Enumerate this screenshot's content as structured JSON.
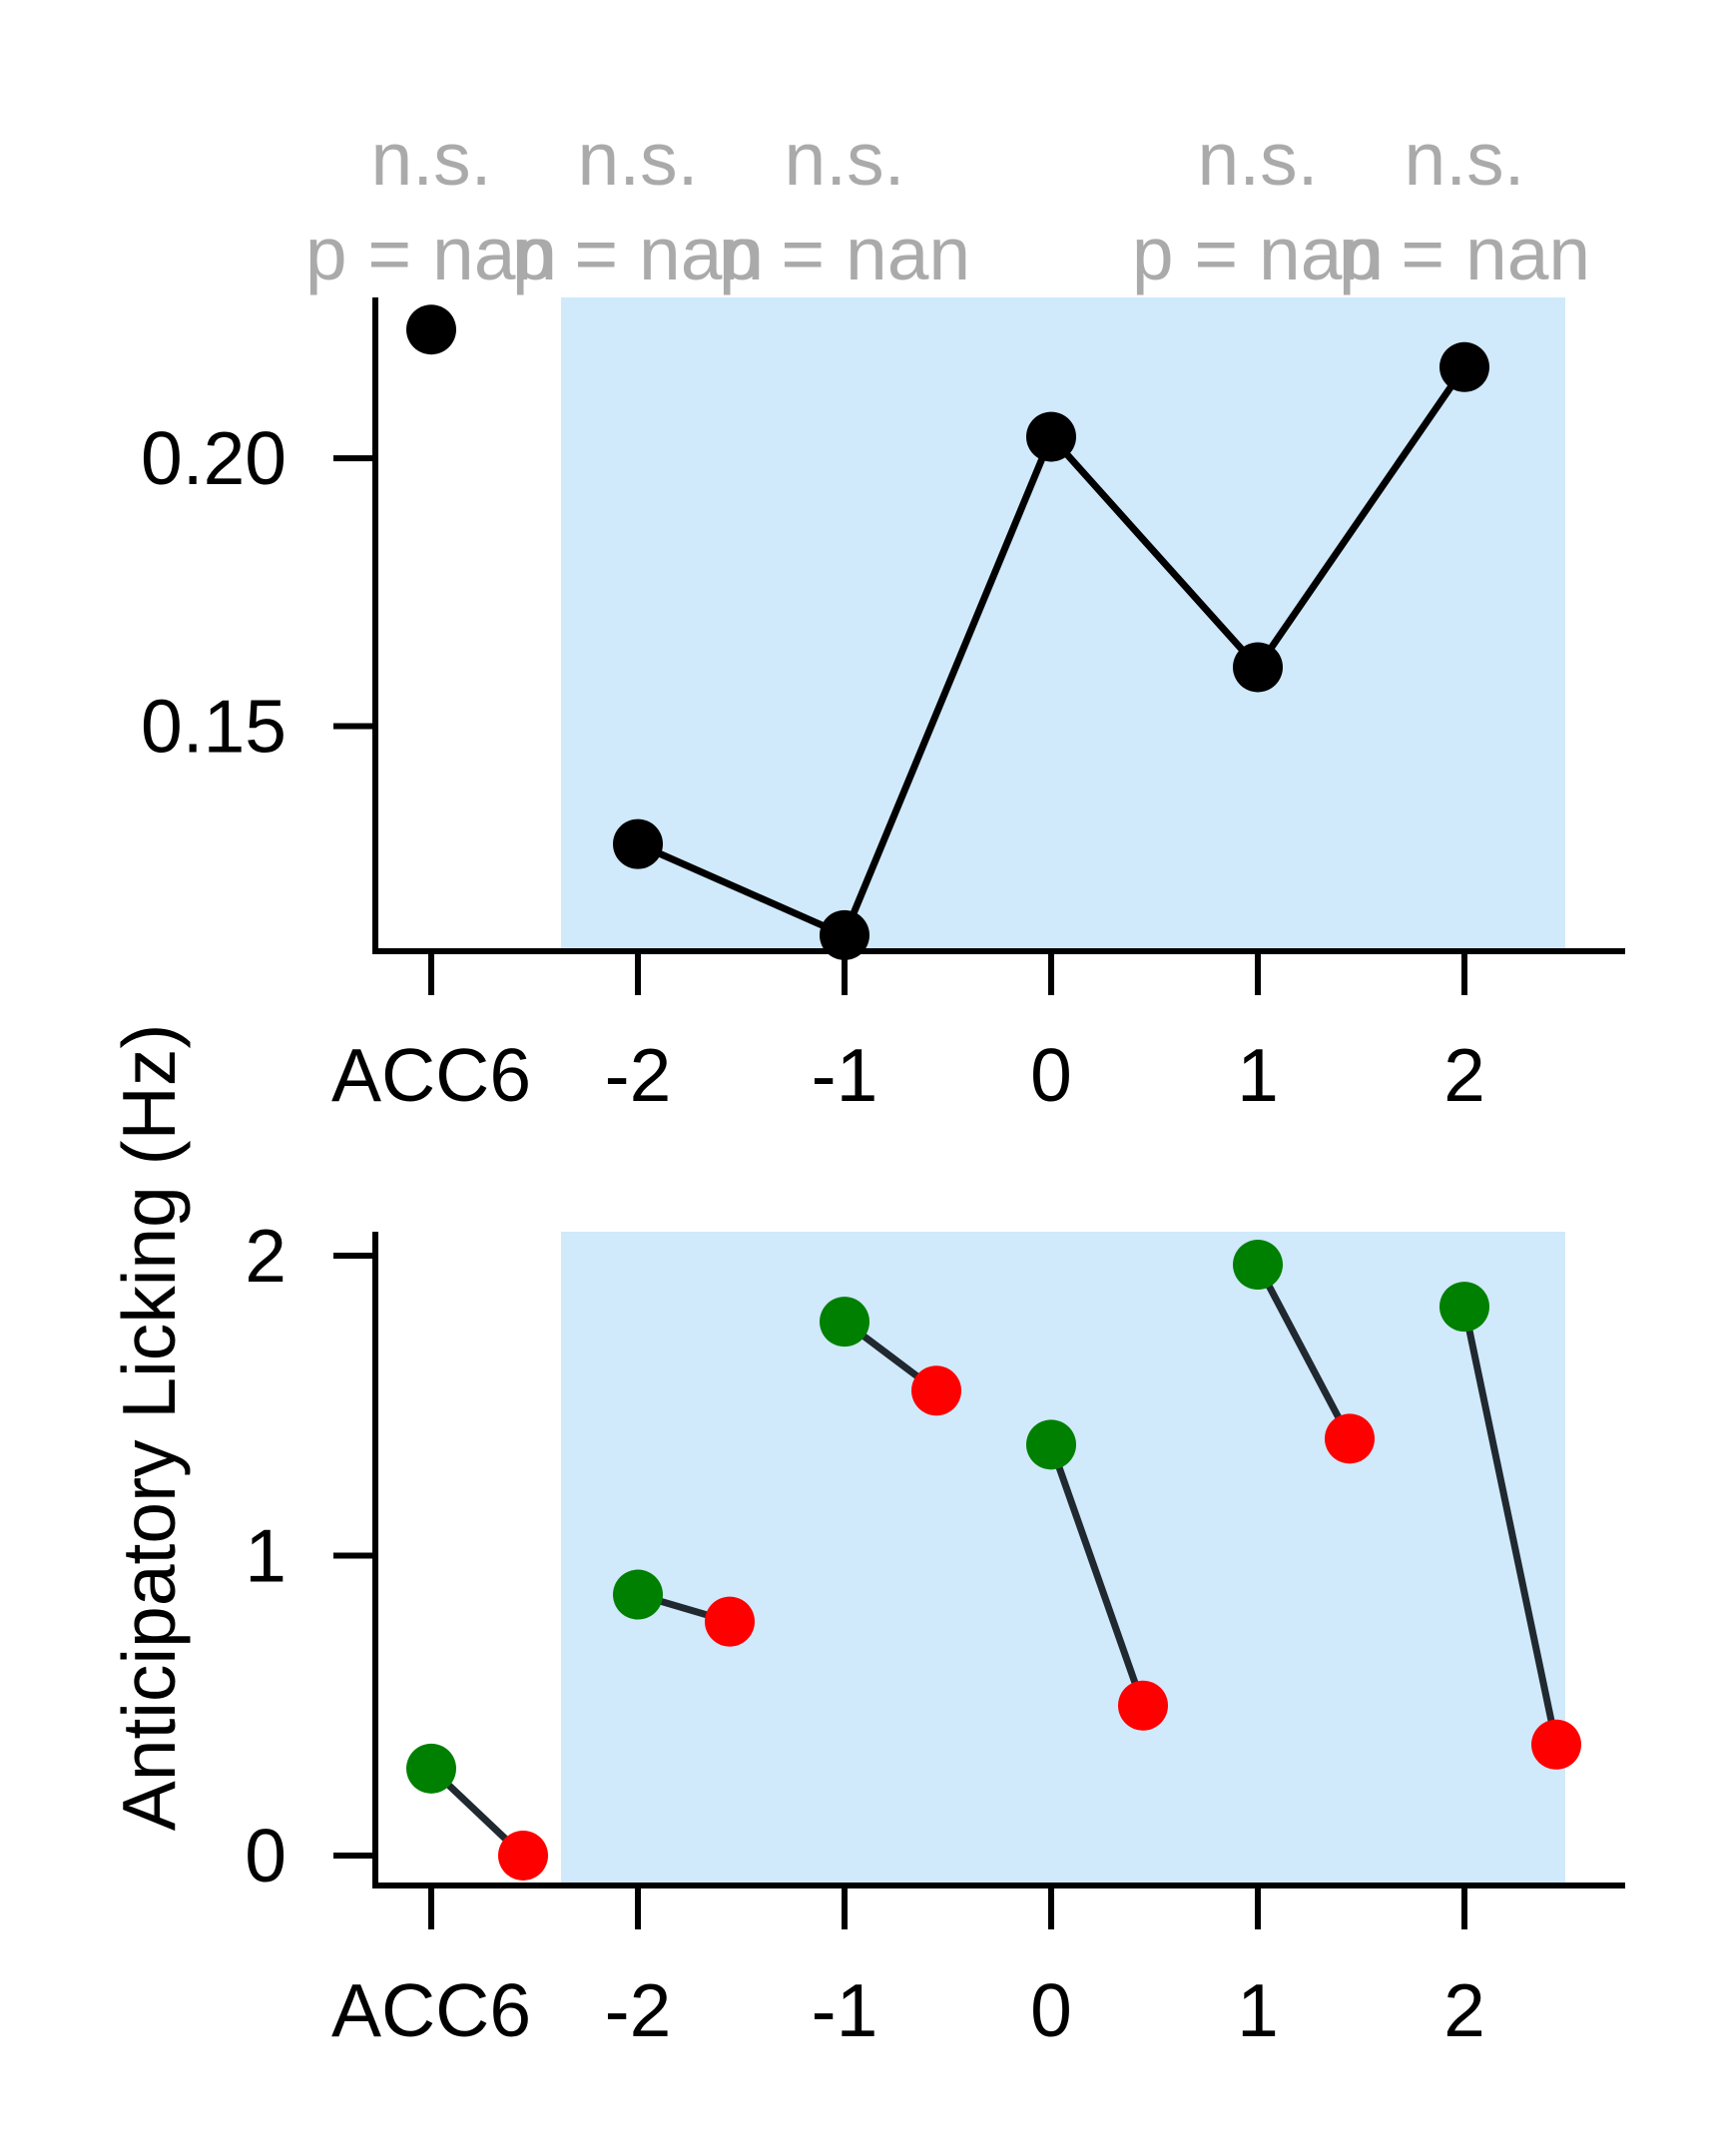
{
  "chart_data": [
    {
      "type": "line",
      "categories": [
        "ACC6",
        "-2",
        "-1",
        "0",
        "1",
        "2"
      ],
      "values": [
        0.224,
        0.128,
        0.111,
        0.204,
        0.161,
        0.217
      ],
      "line_connects_from_index": 1,
      "yticks": [
        0.15,
        0.2
      ],
      "ytick_labels": [
        "0.15",
        "0.20"
      ],
      "ylim": [
        0.108,
        0.23
      ],
      "shaded_region_categories": [
        "-2",
        "2"
      ],
      "shade_color": "#d0e9fb",
      "marker_color": "#000000",
      "annotations": [
        {
          "category": "ACC6",
          "sig": "n.s.",
          "p": "p = nan"
        },
        {
          "category": "-2",
          "sig": "n.s.",
          "p": "p = nan"
        },
        {
          "category": "-1",
          "sig": "n.s.",
          "p": "p = nan"
        },
        {
          "category": "1",
          "sig": "n.s.",
          "p": "p = nan"
        },
        {
          "category": "2",
          "sig": "n.s.",
          "p": "p = nan"
        }
      ]
    },
    {
      "type": "scatter",
      "categories": [
        "ACC6",
        "-2",
        "-1",
        "0",
        "1",
        "2"
      ],
      "ylabel": "Anticipatory Licking (Hz)",
      "yticks": [
        0,
        1,
        2
      ],
      "ytick_labels": [
        "0",
        "1",
        "2"
      ],
      "ylim": [
        -0.1,
        2.08
      ],
      "series": [
        {
          "color": "#008000",
          "values": [
            0.29,
            0.87,
            1.78,
            1.37,
            1.97,
            1.83
          ]
        },
        {
          "color": "#ff0000",
          "values": [
            0.0,
            0.78,
            1.55,
            0.5,
            1.39,
            0.37
          ]
        }
      ],
      "shaded_region_categories": [
        "-2",
        "2"
      ],
      "shade_color": "#d0e9fb",
      "connector_color": "#202830"
    }
  ]
}
